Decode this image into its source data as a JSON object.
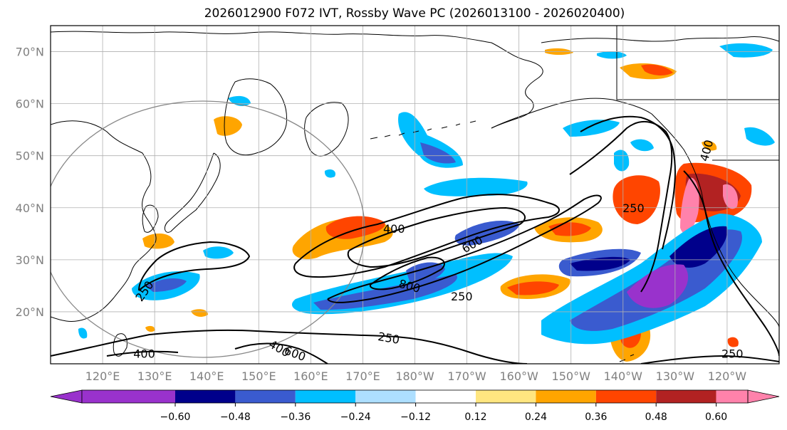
{
  "title": "2026012900 F072 IVT, Rossby Wave PC (2026013100 - 2026020400)",
  "map": {
    "projection": "PlateCarree",
    "lon_range": [
      110,
      250
    ],
    "lat_range": [
      10,
      75
    ],
    "lat_labels": [
      "20°N",
      "30°N",
      "40°N",
      "50°N",
      "60°N",
      "70°N"
    ],
    "lat_values": [
      20,
      30,
      40,
      50,
      60,
      70
    ],
    "lon_labels": [
      "120°E",
      "130°E",
      "140°E",
      "150°E",
      "160°E",
      "170°E",
      "180°W",
      "170°W",
      "160°W",
      "150°W",
      "140°W",
      "130°W",
      "120°W"
    ],
    "lon_values": [
      120,
      130,
      140,
      150,
      160,
      170,
      180,
      190,
      200,
      210,
      220,
      230,
      240
    ],
    "gridlines": true,
    "circle_color": "#888888"
  },
  "ivt_contours": {
    "labels": [
      {
        "text": "250",
        "lon": 128,
        "lat": 24,
        "rot": -55
      },
      {
        "text": "400",
        "lon": 128,
        "lat": 12,
        "rot": 0
      },
      {
        "text": "400",
        "lon": 154,
        "lat": 13,
        "rot": 30
      },
      {
        "text": "600",
        "lon": 157,
        "lat": 12,
        "rot": 20
      },
      {
        "text": "250",
        "lon": 175,
        "lat": 15,
        "rot": 10
      },
      {
        "text": "400",
        "lon": 176,
        "lat": 36,
        "rot": 0
      },
      {
        "text": "600",
        "lon": 191,
        "lat": 33,
        "rot": -30
      },
      {
        "text": "800",
        "lon": 179,
        "lat": 25,
        "rot": 15
      },
      {
        "text": "250",
        "lon": 189,
        "lat": 23,
        "rot": 0
      },
      {
        "text": "250",
        "lon": 222,
        "lat": 40,
        "rot": 0
      },
      {
        "text": "400",
        "lon": 236,
        "lat": 51,
        "rot": -75
      },
      {
        "text": "250",
        "lon": 241,
        "lat": 12,
        "rot": 0
      }
    ]
  },
  "colorbar": {
    "colors": [
      "#9932CC",
      "#00008B",
      "#3A5BCF",
      "#00BFFF",
      "#ADDFFF",
      "#FFFFFF",
      "#FFE680",
      "#FFA500",
      "#FF4500",
      "#B22222",
      "#FF82AB"
    ],
    "tick_labels": [
      "−0.60",
      "−0.48",
      "−0.36",
      "−0.24",
      "−0.12",
      "0.12",
      "0.24",
      "0.36",
      "0.48",
      "0.60"
    ],
    "tick_values": [
      -0.6,
      -0.48,
      -0.36,
      -0.24,
      -0.12,
      0.12,
      0.24,
      0.36,
      0.48,
      0.6
    ]
  }
}
